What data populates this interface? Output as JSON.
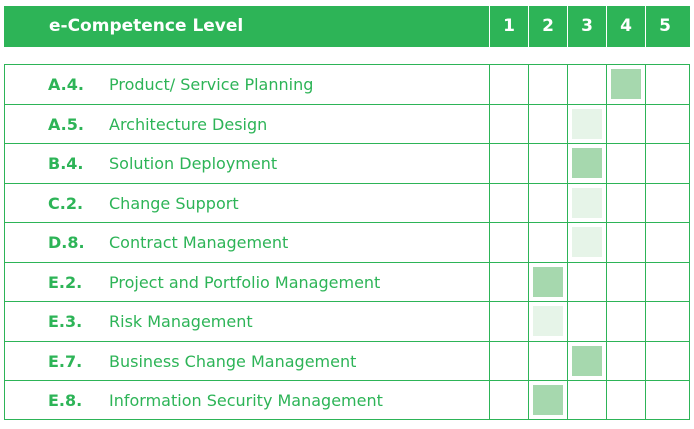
{
  "header": {
    "title": "e-Competence Level",
    "levels": [
      "1",
      "2",
      "3",
      "4",
      "5"
    ]
  },
  "colors": {
    "accent": "#2db457",
    "mark_strong": "#a6d8ae",
    "mark_light": "#e6f4e8"
  },
  "rows": [
    {
      "code": "A.4.",
      "name": "Product/ Service Planning",
      "level": 4,
      "shade": "strong"
    },
    {
      "code": "A.5.",
      "name": "Architecture Design",
      "level": 3,
      "shade": "light"
    },
    {
      "code": "B.4.",
      "name": "Solution Deployment",
      "level": 3,
      "shade": "strong"
    },
    {
      "code": "C.2.",
      "name": "Change Support",
      "level": 3,
      "shade": "light"
    },
    {
      "code": "D.8.",
      "name": "Contract Management",
      "level": 3,
      "shade": "light"
    },
    {
      "code": "E.2.",
      "name": "Project and Portfolio Management",
      "level": 2,
      "shade": "strong"
    },
    {
      "code": "E.3.",
      "name": "Risk Management",
      "level": 2,
      "shade": "light"
    },
    {
      "code": "E.7.",
      "name": "Business Change Management",
      "level": 3,
      "shade": "strong"
    },
    {
      "code": "E.8.",
      "name": "Information Security Management",
      "level": 2,
      "shade": "strong"
    }
  ]
}
